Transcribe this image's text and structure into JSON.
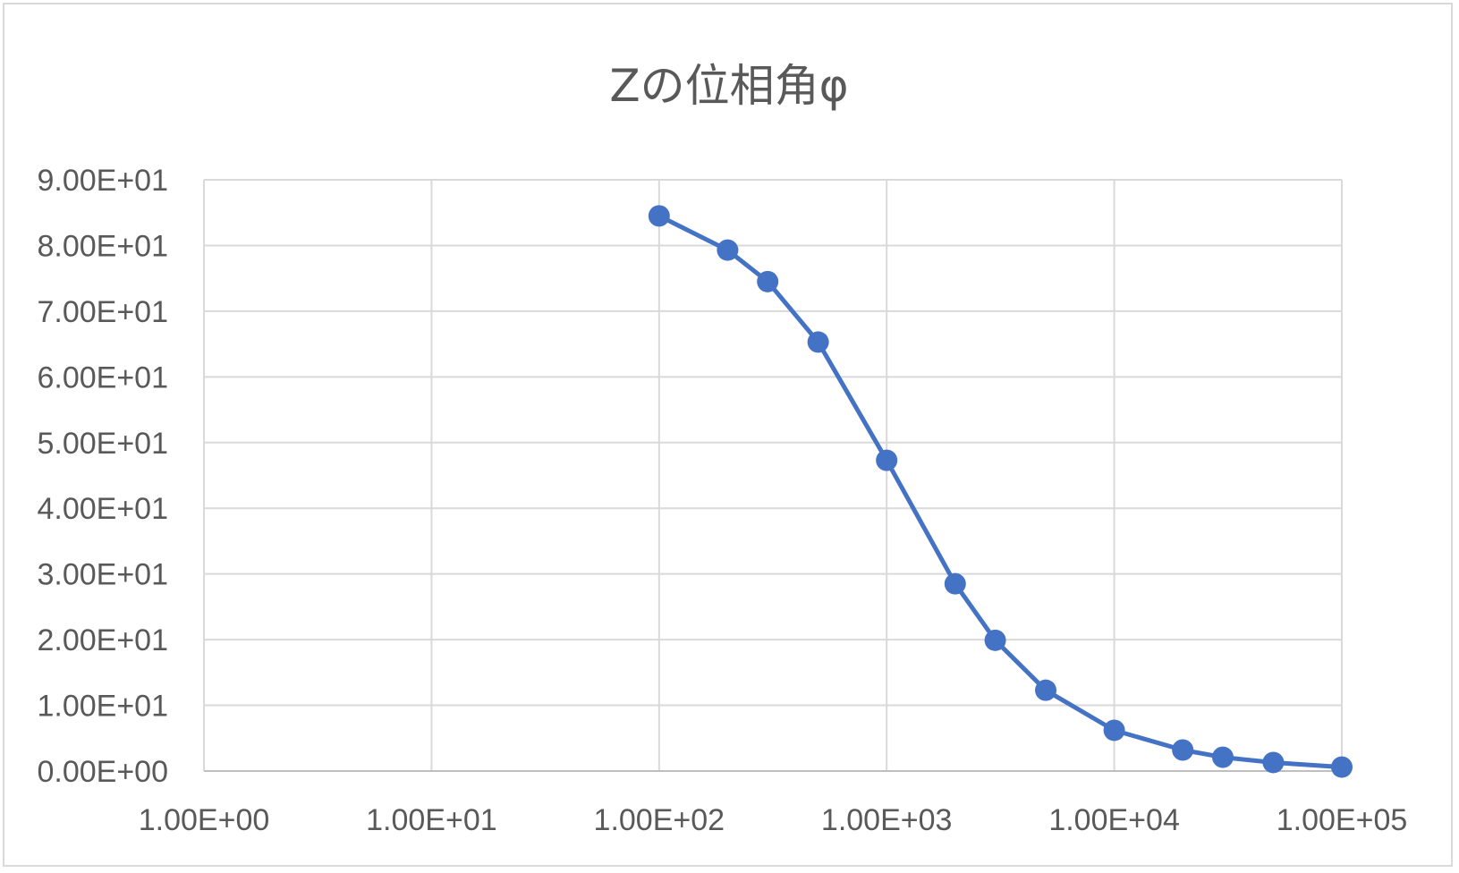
{
  "chart_data": {
    "type": "line",
    "title": "Zの位相角φ",
    "xlabel": "",
    "ylabel": "",
    "x_scale": "log",
    "xlim": [
      1,
      100000
    ],
    "ylim": [
      0,
      90
    ],
    "grid": true,
    "legend": "none",
    "x_tick_labels": [
      "1.00E+00",
      "1.00E+01",
      "1.00E+02",
      "1.00E+03",
      "1.00E+04",
      "1.00E+05"
    ],
    "y_tick_labels": [
      "0.00E+00",
      "1.00E+01",
      "2.00E+01",
      "3.00E+01",
      "4.00E+01",
      "5.00E+01",
      "6.00E+01",
      "7.00E+01",
      "8.00E+01",
      "9.00E+01"
    ],
    "series": [
      {
        "x": [
          100,
          200,
          300,
          500,
          1000,
          2000,
          3000,
          5000,
          10000,
          20000,
          30000,
          50000,
          100000
        ],
        "y": [
          84.5,
          79.3,
          74.5,
          65.3,
          47.3,
          28.5,
          19.9,
          12.3,
          6.2,
          3.2,
          2.1,
          1.3,
          0.6
        ]
      }
    ],
    "colors": {
      "series": "#4472c4",
      "grid": "#d9d9d9",
      "text": "#595959"
    }
  }
}
